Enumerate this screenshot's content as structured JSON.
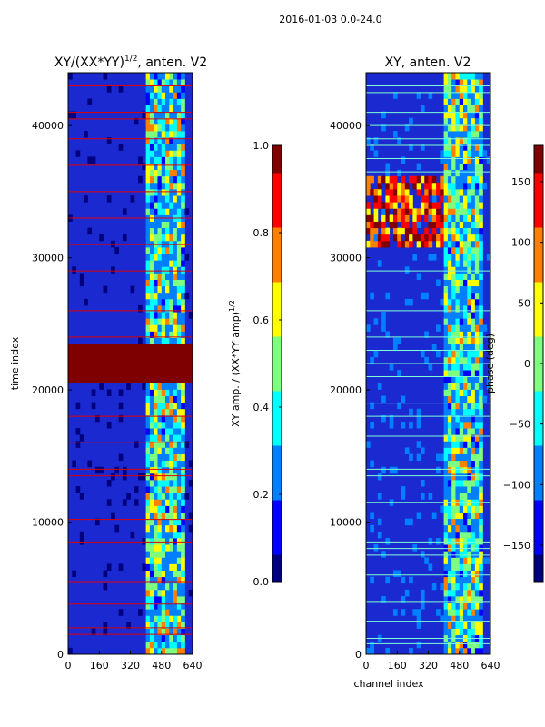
{
  "figure": {
    "suptitle": "2016-01-03 0.0-24.0"
  },
  "colors": {
    "jet": [
      "#00007f",
      "#0000ff",
      "#007fff",
      "#00ffff",
      "#7fff7f",
      "#ffff00",
      "#ff7f00",
      "#ff0000",
      "#7f0000"
    ],
    "background_blue": "#1a2ad0"
  },
  "chart_data": [
    {
      "type": "heatmap",
      "title": "XY/(XX*YY)^1/2, anten. V2",
      "title_main": "XY/(XX*YY)",
      "title_sup": "1/2",
      "title_rest": ", anten. V2",
      "xlabel": "",
      "ylabel": "time index",
      "xlim": [
        0,
        640
      ],
      "ylim": [
        0,
        44000
      ],
      "x_ticks": [
        "0",
        "160",
        "320",
        "480",
        "640"
      ],
      "x_tick_values": [
        0,
        160,
        320,
        480,
        640
      ],
      "y_ticks": [
        "0",
        "10000",
        "20000",
        "30000",
        "40000"
      ],
      "y_tick_values": [
        0,
        10000,
        20000,
        30000,
        40000
      ],
      "colorbar": {
        "label": "XY amp. / (XX*YY amp)^1/2",
        "label_main": "XY amp. / (XX*YY amp)",
        "label_sup": "1/2",
        "range": [
          0.0,
          1.0
        ],
        "ticks": [
          "0.0",
          "0.2",
          "0.4",
          "0.6",
          "0.8",
          "1.0"
        ],
        "tick_values": [
          0.0,
          0.2,
          0.4,
          0.6,
          0.8,
          1.0
        ]
      },
      "features": {
        "high_band_time_range": [
          20500,
          23500
        ],
        "bright_channel_range": [
          400,
          600
        ],
        "red_flag_rows": [
          1500,
          2000,
          3800,
          5500,
          8500,
          10200,
          13500,
          14000,
          16000,
          18000,
          24000,
          26000,
          29000,
          31000,
          33000,
          35000,
          37000,
          39000,
          40500,
          41000,
          43000
        ]
      }
    },
    {
      "type": "heatmap",
      "title": "XY, anten. V2",
      "xlabel": "channel index",
      "ylabel": "",
      "xlim": [
        0,
        640
      ],
      "ylim": [
        0,
        44000
      ],
      "x_ticks": [
        "0",
        "160",
        "320",
        "480",
        "640"
      ],
      "x_tick_values": [
        0,
        160,
        320,
        480,
        640
      ],
      "y_ticks": [
        "0",
        "10000",
        "20000",
        "30000",
        "40000"
      ],
      "y_tick_values": [
        0,
        10000,
        20000,
        30000,
        40000
      ],
      "colorbar": {
        "label": "phase (deg)",
        "range": [
          -180,
          180
        ],
        "ticks": [
          "−150",
          "−100",
          "−50",
          "0",
          "50",
          "100",
          "150"
        ],
        "tick_values": [
          -150,
          -100,
          -50,
          0,
          50,
          100,
          150
        ]
      },
      "features": {
        "warm_band_time_range": [
          30500,
          36000
        ],
        "bright_channel_range": [
          400,
          600
        ],
        "cyan_flag_rows": [
          800,
          1200,
          2500,
          4000,
          6000,
          7500,
          8000,
          8500,
          11500,
          13500,
          14000,
          16500,
          18000,
          19000,
          21000,
          22000,
          23000,
          24000,
          26000,
          29000,
          36500,
          37500,
          38500,
          39000,
          40000,
          41000,
          42500,
          43000
        ]
      }
    }
  ]
}
